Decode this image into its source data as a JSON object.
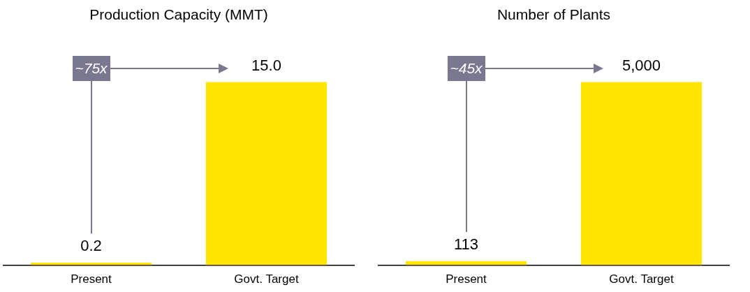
{
  "chart_data": [
    {
      "type": "bar",
      "title": "Production Capacity (MMT)",
      "categories": [
        "Present",
        "Govt. Target"
      ],
      "values": [
        0.2,
        15
      ],
      "value_labels": [
        "0.2",
        "15.0"
      ],
      "color": "#ffe600",
      "annotations": [
        "~75x"
      ]
    },
    {
      "type": "bar",
      "title": "Number of Plants",
      "categories": [
        "Present",
        "Govt. Target"
      ],
      "values": [
        113,
        5000
      ],
      "value_labels": [
        "113",
        "5,000"
      ],
      "color": "#ffe600",
      "annotations": [
        "~45x"
      ]
    }
  ]
}
